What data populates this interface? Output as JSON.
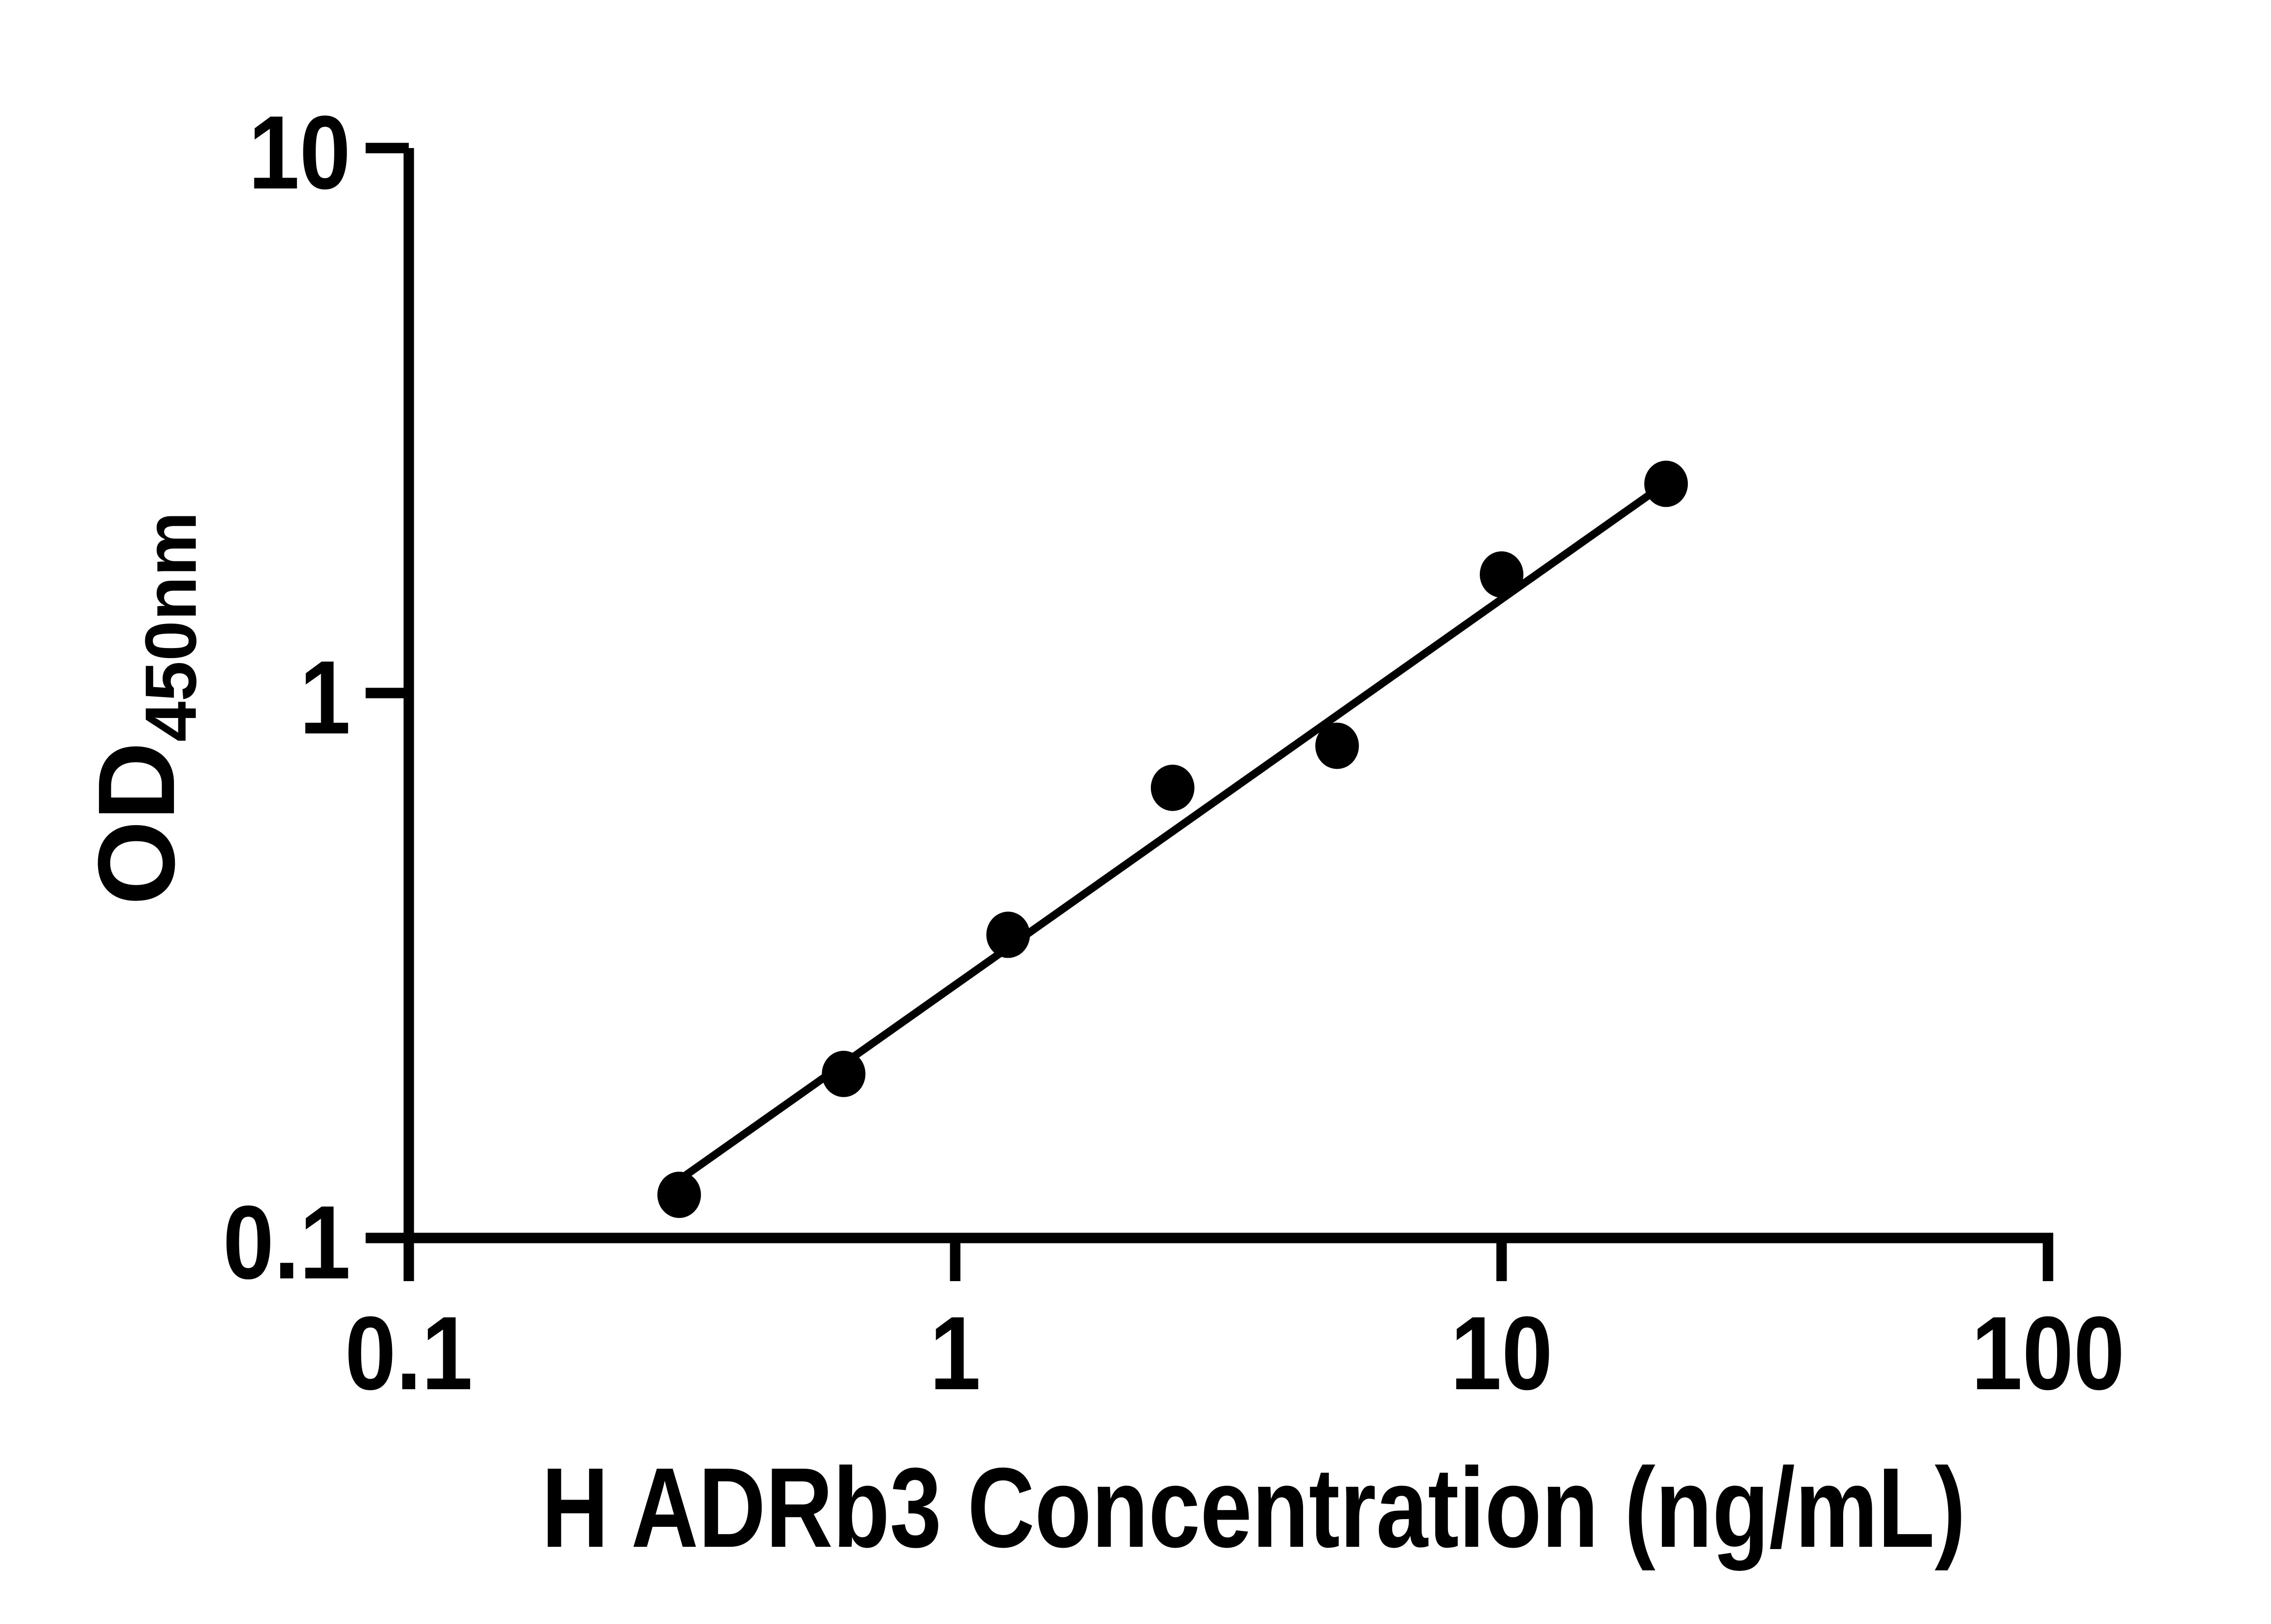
{
  "page": {
    "background_color": "#ffffff",
    "ink_color": "#000000"
  },
  "chart_data": {
    "type": "scatter",
    "title": "",
    "xlabel": "H ADRb3 Concentration (ng/mL)",
    "ylabel": "OD450nm",
    "ylabel_main": "OD",
    "ylabel_sub": "450nm",
    "x_scale": "log",
    "y_scale": "log",
    "xlim": [
      0.1,
      100
    ],
    "ylim": [
      0.1,
      10
    ],
    "grid": false,
    "legend": "none",
    "x_ticks": [
      {
        "value": 0.1,
        "label": "0.1"
      },
      {
        "value": 1,
        "label": "1"
      },
      {
        "value": 10,
        "label": "10"
      },
      {
        "value": 100,
        "label": "100"
      }
    ],
    "y_ticks": [
      {
        "value": 0.1,
        "label": "0.1"
      },
      {
        "value": 1,
        "label": "1"
      },
      {
        "value": 10,
        "label": "10"
      }
    ],
    "marker": {
      "shape": "circle",
      "color": "#000000"
    },
    "points": [
      {
        "x": 0.3125,
        "y": 0.12
      },
      {
        "x": 0.625,
        "y": 0.2
      },
      {
        "x": 1.25,
        "y": 0.36
      },
      {
        "x": 2.5,
        "y": 0.67
      },
      {
        "x": 5,
        "y": 0.8
      },
      {
        "x": 10,
        "y": 1.65
      },
      {
        "x": 20,
        "y": 2.42
      }
    ],
    "fit_line": {
      "color": "#000000",
      "x_start": 0.32,
      "y_start": 0.13,
      "x_end": 19.9,
      "y_end": 2.42
    }
  }
}
